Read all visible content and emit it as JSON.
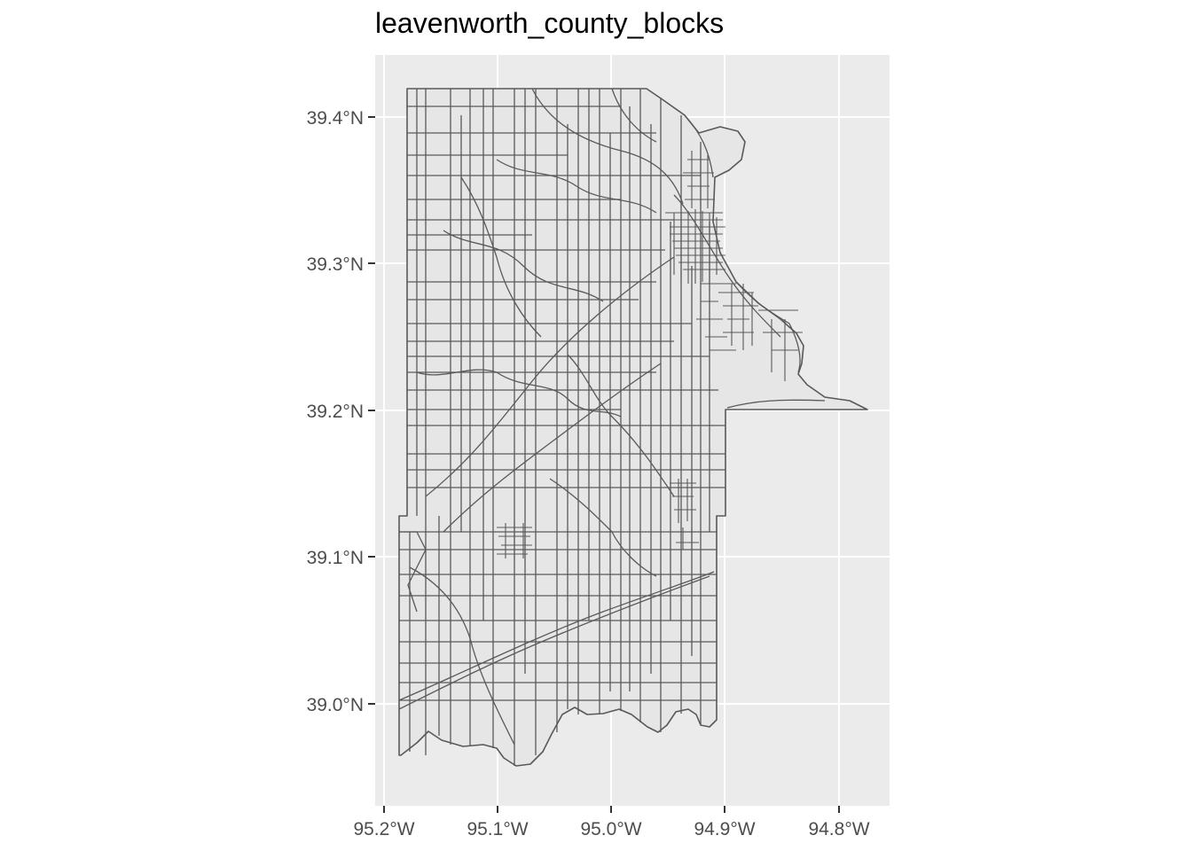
{
  "title": "leavenworth_county_blocks",
  "map": {
    "type": "choropleth-outline",
    "panel_background": "#ebebeb",
    "grid_color": "#ffffff",
    "polygon_fill": "#e6e6e6",
    "polygon_stroke": "#595959",
    "axis_text_color": "#4d4d4d",
    "x_range": [
      -95.2,
      -94.8
    ],
    "y_range": [
      39.0,
      39.4
    ],
    "x_ticks": [
      {
        "value": -95.2,
        "label": "95.2°W"
      },
      {
        "value": -95.1,
        "label": "95.1°W"
      },
      {
        "value": -95.0,
        "label": "95.0°W"
      },
      {
        "value": -94.9,
        "label": "94.9°W"
      },
      {
        "value": -94.8,
        "label": "94.8°W"
      }
    ],
    "y_ticks": [
      {
        "value": 39.4,
        "label": "39.4°N"
      },
      {
        "value": 39.3,
        "label": "39.3°N"
      },
      {
        "value": 39.2,
        "label": "39.2°N"
      },
      {
        "value": 39.1,
        "label": "39.1°N"
      },
      {
        "value": 39.0,
        "label": "39.0°N"
      }
    ]
  }
}
